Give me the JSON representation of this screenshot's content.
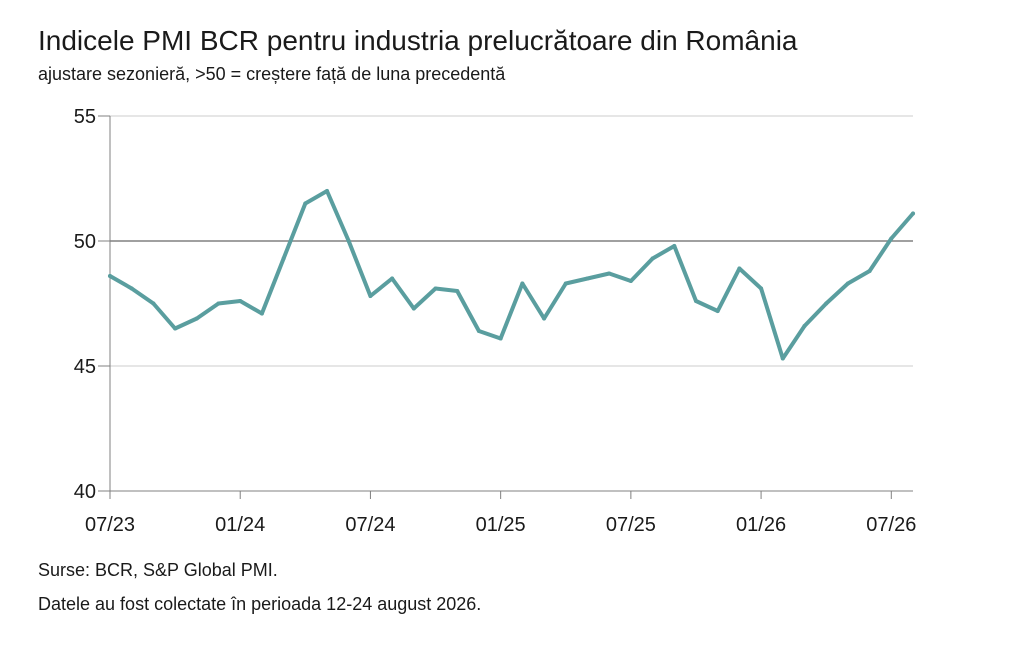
{
  "title": "Indicele PMI BCR pentru industria prelucrătoare din România",
  "subtitle": "ajustare sezonieră, >50 = creștere față de luna precedentă",
  "notes": {
    "sources": "Surse: BCR, S&P Global PMI.",
    "collection": "Datele au fost colectate în perioada 12-24 august 2026."
  },
  "colors": {
    "line": "#5a9e9f",
    "axis": "#808080",
    "gridline": "#cccccc",
    "reference": "#808080"
  },
  "chart_data": {
    "type": "line",
    "title": "Indicele PMI BCR pentru industria prelucrătoare din România",
    "subtitle": "ajustare sezonieră, >50 = creștere față de luna precedentă",
    "xlabel": "",
    "ylabel": "",
    "ylim": [
      40,
      55
    ],
    "yticks": [
      "40",
      "45",
      "50",
      "55"
    ],
    "xticks": [
      "07/23",
      "01/24",
      "07/24",
      "01/25",
      "07/25",
      "01/26",
      "07/26"
    ],
    "reference_line": 50,
    "grid": "horizontal",
    "x": [
      "07/23",
      "08/23",
      "09/23",
      "10/23",
      "11/23",
      "12/23",
      "01/24",
      "02/24",
      "03/24",
      "04/24",
      "05/24",
      "06/24",
      "07/24",
      "08/24",
      "09/24",
      "10/24",
      "11/24",
      "12/24",
      "01/25",
      "02/25",
      "03/25",
      "04/25",
      "05/25",
      "06/25",
      "07/25",
      "08/25",
      "09/25",
      "10/25",
      "11/25",
      "12/25",
      "01/26",
      "02/26",
      "03/26",
      "04/26",
      "05/26",
      "06/26",
      "07/26",
      "08/26"
    ],
    "series": [
      {
        "values": [
          48.6,
          48.1,
          47.5,
          46.5,
          46.9,
          47.5,
          47.6,
          47.1,
          49.3,
          51.5,
          52.0,
          50.0,
          47.8,
          48.5,
          47.3,
          48.1,
          48.0,
          46.4,
          46.1,
          48.3,
          46.9,
          48.3,
          48.5,
          48.7,
          48.4,
          49.3,
          49.8,
          47.6,
          47.2,
          48.9,
          48.1,
          45.3,
          46.6,
          47.5,
          48.3,
          48.8,
          50.1,
          51.1
        ]
      }
    ]
  }
}
